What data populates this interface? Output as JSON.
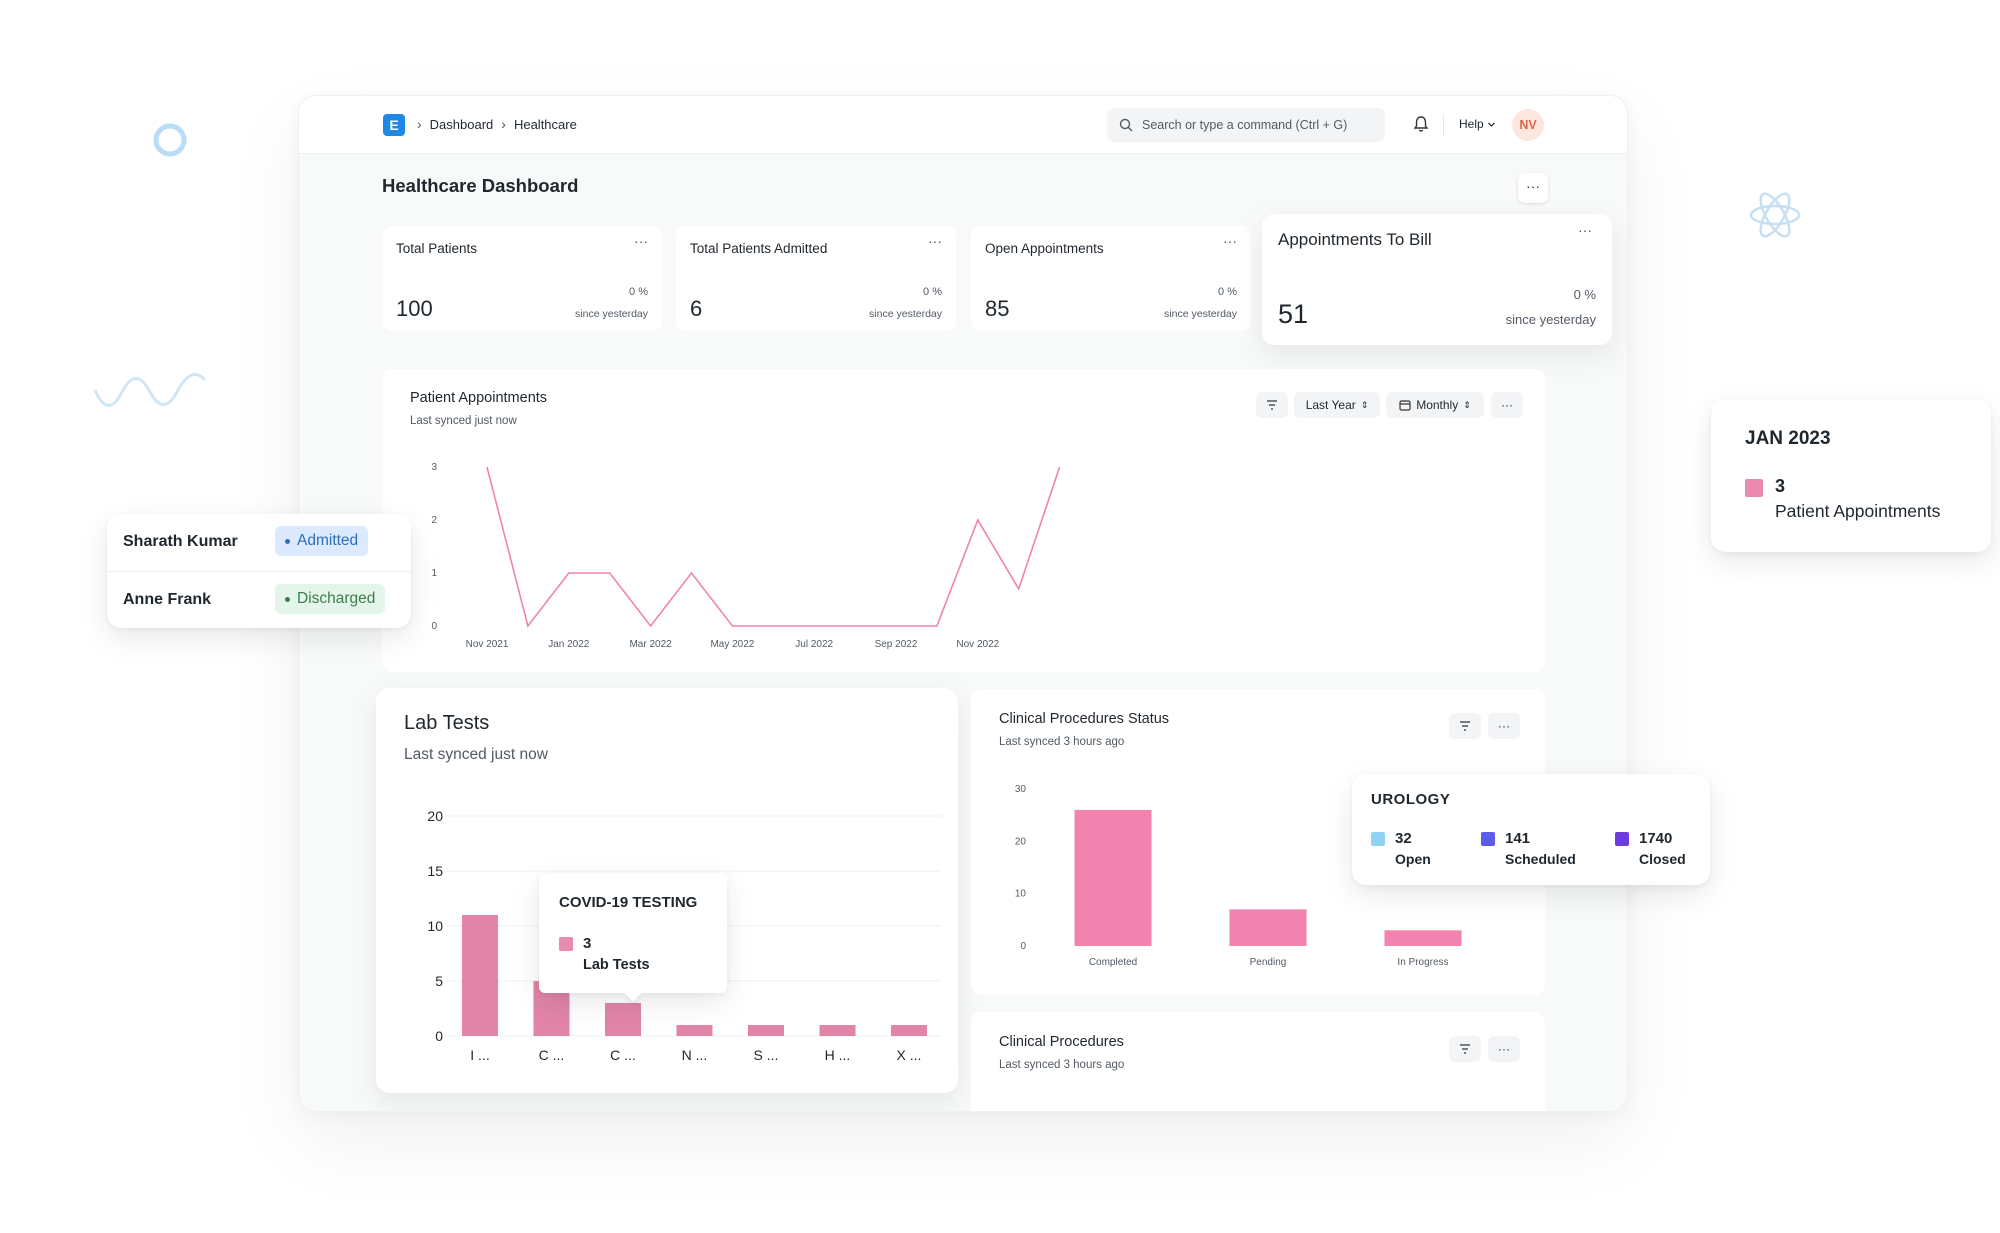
{
  "topbar": {
    "logo_letter": "E",
    "breadcrumbs": [
      "Dashboard",
      "Healthcare"
    ],
    "search_placeholder": "Search or type a command (Ctrl + G)",
    "help_label": "Help",
    "avatar_initials": "NV"
  },
  "page": {
    "title": "Healthcare Dashboard",
    "menu_glyph": "···"
  },
  "stats": [
    {
      "title": "Total Patients",
      "value": "100",
      "change": "0 %",
      "since": "since yesterday"
    },
    {
      "title": "Total Patients Admitted",
      "value": "6",
      "change": "0 %",
      "since": "since yesterday"
    },
    {
      "title": "Open Appointments",
      "value": "85",
      "change": "0 %",
      "since": "since yesterday"
    },
    {
      "title": "Appointments To Bill",
      "value": "51",
      "change": "0 %",
      "since": "since yesterday"
    }
  ],
  "patient_appointments": {
    "title": "Patient Appointments",
    "subtitle": "Last synced just now",
    "range_label": "Last Year",
    "interval_label": "Monthly"
  },
  "lab_tests": {
    "title": "Lab Tests",
    "subtitle": "Last synced just now"
  },
  "clinical_status": {
    "title": "Clinical Procedures Status",
    "subtitle": "Last synced 3 hours ago"
  },
  "clinical_procedures": {
    "title": "Clinical Procedures",
    "subtitle": "Last synced 3 hours ago"
  },
  "patients_card": {
    "rows": [
      {
        "name": "Sharath Kumar",
        "status": "Admitted"
      },
      {
        "name": "Anne Frank",
        "status": "Discharged"
      }
    ]
  },
  "tooltip_appointments": {
    "title": "JAN 2023",
    "value": "3",
    "label": "Patient Appointments"
  },
  "tooltip_lab": {
    "title": "COVID-19 TESTING",
    "value": "3",
    "label": "Lab Tests"
  },
  "tooltip_urology": {
    "title": "UROLOGY",
    "items": [
      {
        "value": "32",
        "label": "Open",
        "color": "#8fd3f4"
      },
      {
        "value": "141",
        "label": "Scheduled",
        "color": "#5c5ce6"
      },
      {
        "value": "1740",
        "label": "Closed",
        "color": "#6c3ce0"
      }
    ]
  },
  "colors": {
    "accent_pink": "#f282ae",
    "brand_blue": "#1e88e5",
    "admitted_bg": "#dbeafe",
    "admitted_fg": "#2f6db5",
    "discharged_bg": "#e4f5e9",
    "discharged_fg": "#3e7d4e"
  },
  "chart_data": [
    {
      "type": "line",
      "x": [
        "Nov 2021",
        "Dec 2021",
        "Jan 2022",
        "Feb 2022",
        "Mar 2022",
        "Apr 2022",
        "May 2022",
        "Jun 2022",
        "Jul 2022",
        "Aug 2022",
        "Sep 2022",
        "Oct 2022",
        "Nov 2022",
        "Dec 2022",
        "Jan 2023"
      ],
      "tick_labels": [
        "Nov 2021",
        "Jan 2022",
        "Mar 2022",
        "May 2022",
        "Jul 2022",
        "Sep 2022",
        "Nov 2022"
      ],
      "series": [
        {
          "name": "Patient Appointments",
          "values": [
            3,
            0,
            1,
            1,
            0,
            1,
            0,
            0,
            0,
            0,
            0,
            0,
            2,
            0.7,
            3
          ]
        }
      ],
      "ylim": [
        0,
        3
      ],
      "yticks": [
        0,
        1,
        2,
        3
      ]
    },
    {
      "type": "bar",
      "categories": [
        "I ...",
        "C ...",
        "C ...",
        "N ...",
        "S ...",
        "H ...",
        "X ..."
      ],
      "series": [
        {
          "name": "Lab Tests",
          "values": [
            11,
            5,
            3,
            1,
            1,
            1,
            1
          ]
        }
      ],
      "ylim": [
        0,
        20
      ],
      "yticks": [
        0,
        5,
        10,
        15,
        20
      ]
    },
    {
      "type": "bar",
      "categories": [
        "Completed",
        "Pending",
        "In Progress"
      ],
      "values": [
        26,
        7,
        3
      ],
      "ylim": [
        0,
        30
      ],
      "yticks": [
        0,
        10,
        20,
        30
      ]
    }
  ]
}
